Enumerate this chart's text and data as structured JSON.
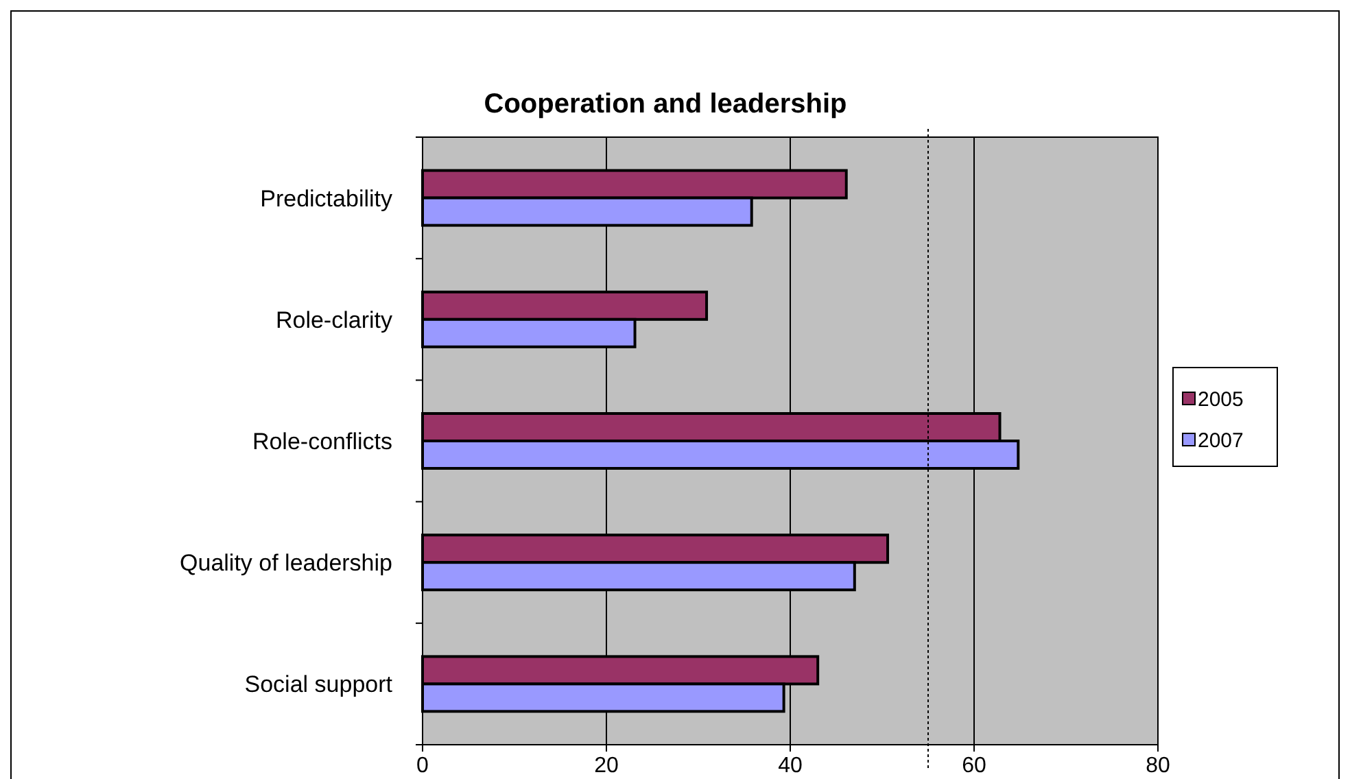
{
  "chart_data": {
    "type": "bar",
    "orientation": "horizontal",
    "title": "Cooperation and leadership",
    "categories": [
      "Predictability",
      "Role-clarity",
      "Role-conflicts",
      "Quality of leadership",
      "Social support"
    ],
    "series": [
      {
        "name": "2005",
        "color": "#993366",
        "values": [
          46.1,
          30.9,
          62.8,
          50.6,
          43.0
        ]
      },
      {
        "name": "2007",
        "color": "#9999ff",
        "values": [
          35.8,
          23.1,
          64.8,
          47.0,
          39.3
        ]
      }
    ],
    "xlim": [
      0,
      80
    ],
    "xticks": [
      0,
      20,
      40,
      60,
      80
    ],
    "grid": "x",
    "legend": "right",
    "ref_lines": [
      {
        "axis": "x",
        "value": 55,
        "line_style": "dotted",
        "color": "#000000"
      }
    ]
  }
}
